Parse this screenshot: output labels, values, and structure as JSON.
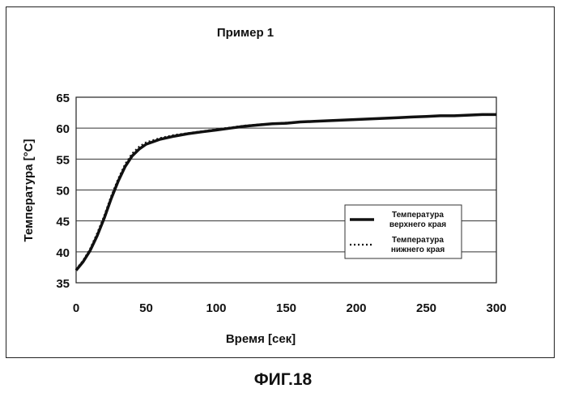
{
  "figure_label": "ФИГ.18",
  "chart_data": {
    "type": "line",
    "title": "Пример 1",
    "xlabel": "Время [сек]",
    "ylabel": "Температура [°C]",
    "xlim": [
      0,
      300
    ],
    "ylim": [
      35,
      65
    ],
    "xticks": [
      0,
      50,
      100,
      150,
      200,
      250,
      300
    ],
    "yticks": [
      35,
      40,
      45,
      50,
      55,
      60,
      65
    ],
    "grid": "horizontal",
    "legend_position": "right",
    "series": [
      {
        "name": "Температура верхнего края",
        "style": "solid",
        "color": "#111111",
        "x": [
          0,
          5,
          10,
          15,
          20,
          25,
          30,
          35,
          40,
          45,
          50,
          60,
          70,
          80,
          90,
          100,
          110,
          120,
          130,
          140,
          150,
          160,
          170,
          180,
          190,
          200,
          210,
          220,
          230,
          240,
          250,
          260,
          270,
          280,
          290,
          300
        ],
        "y": [
          37.0,
          38.4,
          40.2,
          42.6,
          45.4,
          48.6,
          51.4,
          53.8,
          55.5,
          56.6,
          57.4,
          58.2,
          58.7,
          59.1,
          59.4,
          59.7,
          60.0,
          60.3,
          60.5,
          60.7,
          60.8,
          61.0,
          61.1,
          61.2,
          61.3,
          61.4,
          61.5,
          61.6,
          61.7,
          61.8,
          61.9,
          62.0,
          62.0,
          62.1,
          62.2,
          62.2
        ]
      },
      {
        "name": "Температура нижнего края",
        "style": "dotted",
        "color": "#111111",
        "x": [
          0,
          5,
          10,
          15,
          20,
          25,
          30,
          35,
          40,
          45,
          50,
          60,
          70,
          80,
          90,
          100,
          110,
          120,
          130,
          140,
          150,
          160,
          170,
          180,
          190,
          200,
          210,
          220,
          230,
          240,
          250,
          260,
          270,
          280,
          290,
          300
        ],
        "y": [
          37.2,
          38.6,
          40.5,
          43.0,
          45.8,
          49.0,
          51.8,
          54.2,
          55.9,
          57.0,
          57.7,
          58.4,
          58.9,
          59.2,
          59.5,
          59.8,
          60.1,
          60.4,
          60.6,
          60.7,
          60.9,
          61.0,
          61.1,
          61.2,
          61.3,
          61.4,
          61.5,
          61.6,
          61.7,
          61.8,
          61.9,
          62.0,
          62.0,
          62.1,
          62.2,
          62.2
        ]
      }
    ]
  }
}
